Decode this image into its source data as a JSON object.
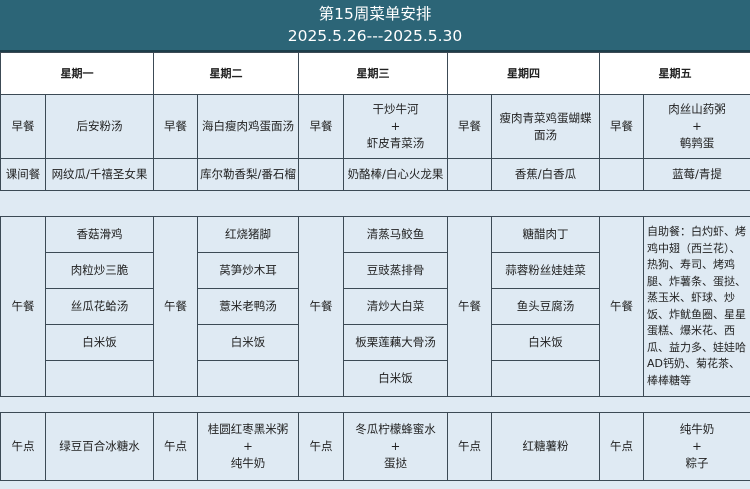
{
  "title": "第15周菜单安排",
  "date_range": "2025.5.26---2025.5.30",
  "days": [
    "星期一",
    "星期二",
    "星期三",
    "星期四",
    "星期五"
  ],
  "labels": {
    "breakfast": "早餐",
    "snack": "课间餐",
    "lunch": "午餐",
    "afternoon": "午点"
  },
  "breakfast": [
    [
      "后安粉汤"
    ],
    [
      "海白瘦肉鸡蛋面汤"
    ],
    [
      "干炒牛河",
      "+",
      "虾皮青菜汤"
    ],
    [
      "瘦肉青菜鸡蛋蝴蝶面汤"
    ],
    [
      "肉丝山药粥",
      "+",
      "鹌鹑蛋"
    ]
  ],
  "snack": [
    "网纹瓜/千禧圣女果",
    "库尔勒香梨/番石榴",
    "奶酪棒/白心火龙果",
    "香蕉/白香瓜",
    "蓝莓/青提"
  ],
  "lunch": {
    "mon": [
      "香菇滑鸡",
      "肉粒炒三脆",
      "丝瓜花蛤汤",
      "白米饭",
      ""
    ],
    "tue": [
      "红烧猪脚",
      "莴笋炒木耳",
      "薏米老鸭汤",
      "白米饭",
      ""
    ],
    "wed": [
      "清蒸马鲛鱼",
      "豆豉蒸排骨",
      "清炒大白菜",
      "板栗莲藕大骨汤",
      "白米饭"
    ],
    "thu": [
      "糖醋肉丁",
      "蒜蓉粉丝娃娃菜",
      "鱼头豆腐汤",
      "白米饭",
      ""
    ],
    "fri": "自助餐：白灼虾、烤鸡中翅（西兰花）、热狗、寿司、烤鸡腿、炸薯条、蛋挞、蒸玉米、虾球、炒饭、炸鱿鱼圈、星星蛋糕、爆米花、西瓜、益力多、娃娃哈AD钙奶、菊花茶、棒棒糖等"
  },
  "afternoon": [
    [
      "绿豆百合冰糖水"
    ],
    [
      "桂圆红枣黑米粥",
      "+",
      "纯牛奶"
    ],
    [
      "冬瓜柠檬蜂蜜水",
      "+",
      "蛋挞"
    ],
    [
      "红糖薯粉"
    ],
    [
      "纯牛奶",
      "+",
      "粽子"
    ]
  ],
  "colors": {
    "header": "#2c6577",
    "cell": "#dfeaf3"
  }
}
